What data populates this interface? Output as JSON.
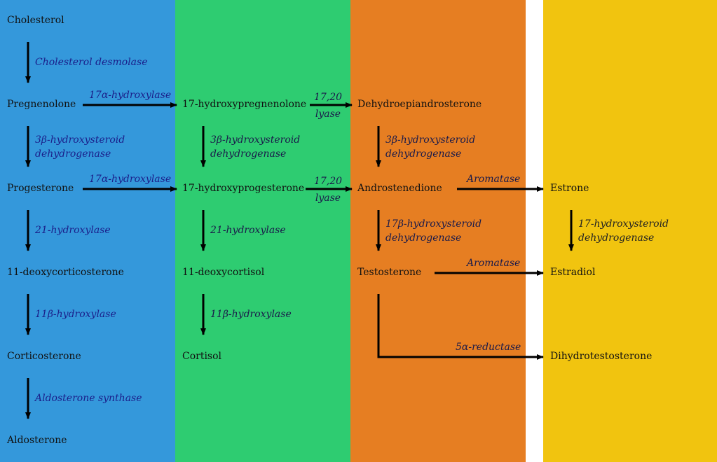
{
  "colors": {
    "column_1": "#3498db",
    "column_2": "#2ecc71",
    "column_3": "#e67e22",
    "column_4": "#f1c40f",
    "arrow": "#000000"
  },
  "nodes": {
    "cholesterol": "Cholesterol",
    "pregnenolone": "Pregnenolone",
    "progesterone": "Progesterone",
    "deoxycorticosterone": "11-deoxycorticosterone",
    "corticosterone": "Corticosterone",
    "aldosterone": "Aldosterone",
    "hydroxypregnenolone": "17-hydroxypregnenolone",
    "hydroxyprogesterone": "17-hydroxyprogesterone",
    "deoxycortisol": "11-deoxycortisol",
    "cortisol": "Cortisol",
    "dhea": "Dehydroepiandrosterone",
    "androstenedione": "Androstenedione",
    "testosterone": "Testosterone",
    "estrone": "Estrone",
    "estradiol": "Estradiol",
    "dht": "Dihydrotestosterone"
  },
  "enzymes": {
    "cholesterol_desmolase": "Cholesterol desmolase",
    "hydroxylase_17a_1": "17α-hydroxylase",
    "hydroxylase_17a_2": "17α-hydroxylase",
    "hsd3b_1": [
      "3β-hydroxysteroid",
      "dehydrogenase"
    ],
    "hsd3b_2": [
      "3β-hydroxysteroid",
      "dehydrogenase"
    ],
    "hsd3b_3": [
      "3β-hydroxysteroid",
      "dehydrogenase"
    ],
    "hydroxylase_21_1": "21-hydroxylase",
    "hydroxylase_21_2": "21-hydroxylase",
    "hydroxylase_11b_1": "11β-hydroxylase",
    "hydroxylase_11b_2": "11β-hydroxylase",
    "aldosterone_synthase": "Aldosterone synthase",
    "lyase_1": [
      "17,20",
      "lyase"
    ],
    "lyase_2": [
      "17,20",
      "lyase"
    ],
    "hsd17b": [
      "17β-hydroxysteroid",
      "dehydrogenase"
    ],
    "aromatase_1": "Aromatase",
    "aromatase_2": "Aromatase",
    "reductase_5a": "5α-reductase",
    "hsd17": [
      "17-hydroxysteroid",
      "dehydrogenase"
    ]
  }
}
